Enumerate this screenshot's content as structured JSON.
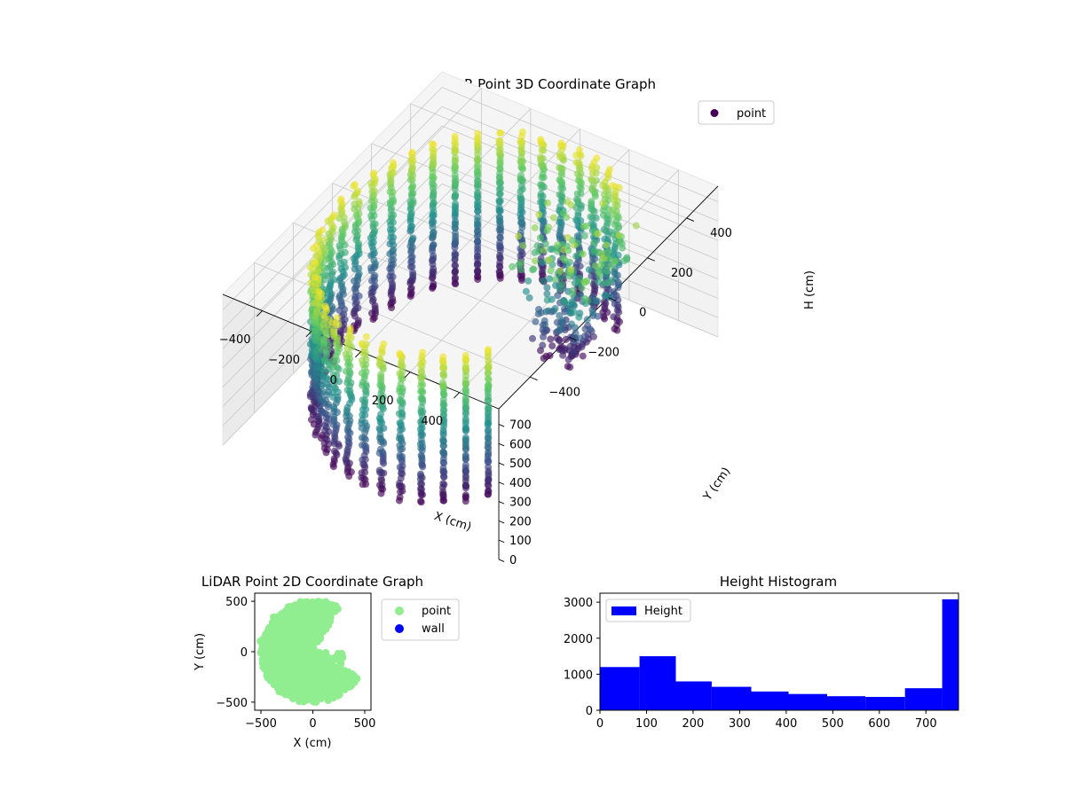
{
  "chart_data": [
    {
      "type": "scatter",
      "projection": "3d",
      "title": "LiDAR Point 3D Coordinate Graph",
      "xlabel": "X (cm)",
      "ylabel": "Y (cm)",
      "zlabel": "H (cm)",
      "xlim": [
        -560,
        560
      ],
      "ylim": [
        -560,
        560
      ],
      "zlim": [
        0,
        780
      ],
      "z_inverted": true,
      "x_ticks": [
        {
          "v": -400,
          "label": "−400"
        },
        {
          "v": -200,
          "label": "−200"
        },
        {
          "v": 0,
          "label": "0"
        },
        {
          "v": 200,
          "label": "200"
        },
        {
          "v": 400,
          "label": "400"
        }
      ],
      "y_ticks": [
        {
          "v": -400,
          "label": "−400"
        },
        {
          "v": -200,
          "label": "−200"
        },
        {
          "v": 0,
          "label": "0"
        },
        {
          "v": 200,
          "label": "200"
        },
        {
          "v": 400,
          "label": "400"
        }
      ],
      "z_ticks": [
        {
          "v": 0,
          "label": "0"
        },
        {
          "v": 100,
          "label": "100"
        },
        {
          "v": 200,
          "label": "200"
        },
        {
          "v": 300,
          "label": "300"
        },
        {
          "v": 400,
          "label": "400"
        },
        {
          "v": 500,
          "label": "500"
        },
        {
          "v": 600,
          "label": "600"
        },
        {
          "v": 700,
          "label": "700"
        }
      ],
      "colormap": "viridis",
      "legend": [
        {
          "name": "point",
          "color": "#440154"
        }
      ],
      "legend_position": "top-right",
      "grid": true,
      "series": [
        {
          "name": "point",
          "shape": "cylinder-wall",
          "radius": 500,
          "azimuth_range_deg": [
            60,
            315
          ],
          "height_range": [
            0,
            760
          ],
          "num_azimuth": 32,
          "num_height": 60
        },
        {
          "name": "point",
          "shape": "inner-cluster",
          "center_x": 150,
          "center_y": 250,
          "height_range": [
            0,
            700
          ],
          "num_points": 260
        }
      ]
    },
    {
      "type": "scatter",
      "title": "LiDAR Point 2D Coordinate Graph",
      "xlabel": "X (cm)",
      "ylabel": "Y (cm)",
      "xlim": [
        -560,
        560
      ],
      "ylim": [
        -580,
        580
      ],
      "x_ticks": [
        {
          "v": -500,
          "label": "−500"
        },
        {
          "v": 0,
          "label": "0"
        },
        {
          "v": 500,
          "label": "500"
        }
      ],
      "y_ticks": [
        {
          "v": -500,
          "label": "−500"
        },
        {
          "v": 0,
          "label": "0"
        },
        {
          "v": 500,
          "label": "500"
        }
      ],
      "legend": [
        {
          "name": "point",
          "color": "#90ee90"
        },
        {
          "name": "wall",
          "color": "#0000ff"
        }
      ],
      "legend_position": "outside-right",
      "series": [
        {
          "name": "point",
          "color": "#90ee90",
          "region": "disk",
          "radius": 500,
          "covered_azimuth_deg": [
            60,
            330
          ]
        },
        {
          "name": "wall",
          "color": "#0000ff",
          "values": []
        }
      ]
    },
    {
      "type": "bar",
      "subtype": "histogram",
      "title": "Height Histogram",
      "xlabel": "",
      "ylabel": "",
      "xlim": [
        0,
        770
      ],
      "ylim": [
        0,
        3250
      ],
      "x_ticks": [
        0,
        100,
        200,
        300,
        400,
        500,
        600,
        700
      ],
      "y_ticks": [
        0,
        1000,
        2000,
        3000
      ],
      "bin_edges": [
        0,
        85,
        163,
        240,
        325,
        405,
        488,
        570,
        655,
        735,
        770
      ],
      "values": [
        1200,
        1500,
        800,
        650,
        520,
        450,
        390,
        370,
        610,
        3080
      ],
      "color": "#0000ff",
      "legend": [
        {
          "name": "Height",
          "color": "#0000ff"
        }
      ],
      "legend_position": "upper-left"
    }
  ]
}
